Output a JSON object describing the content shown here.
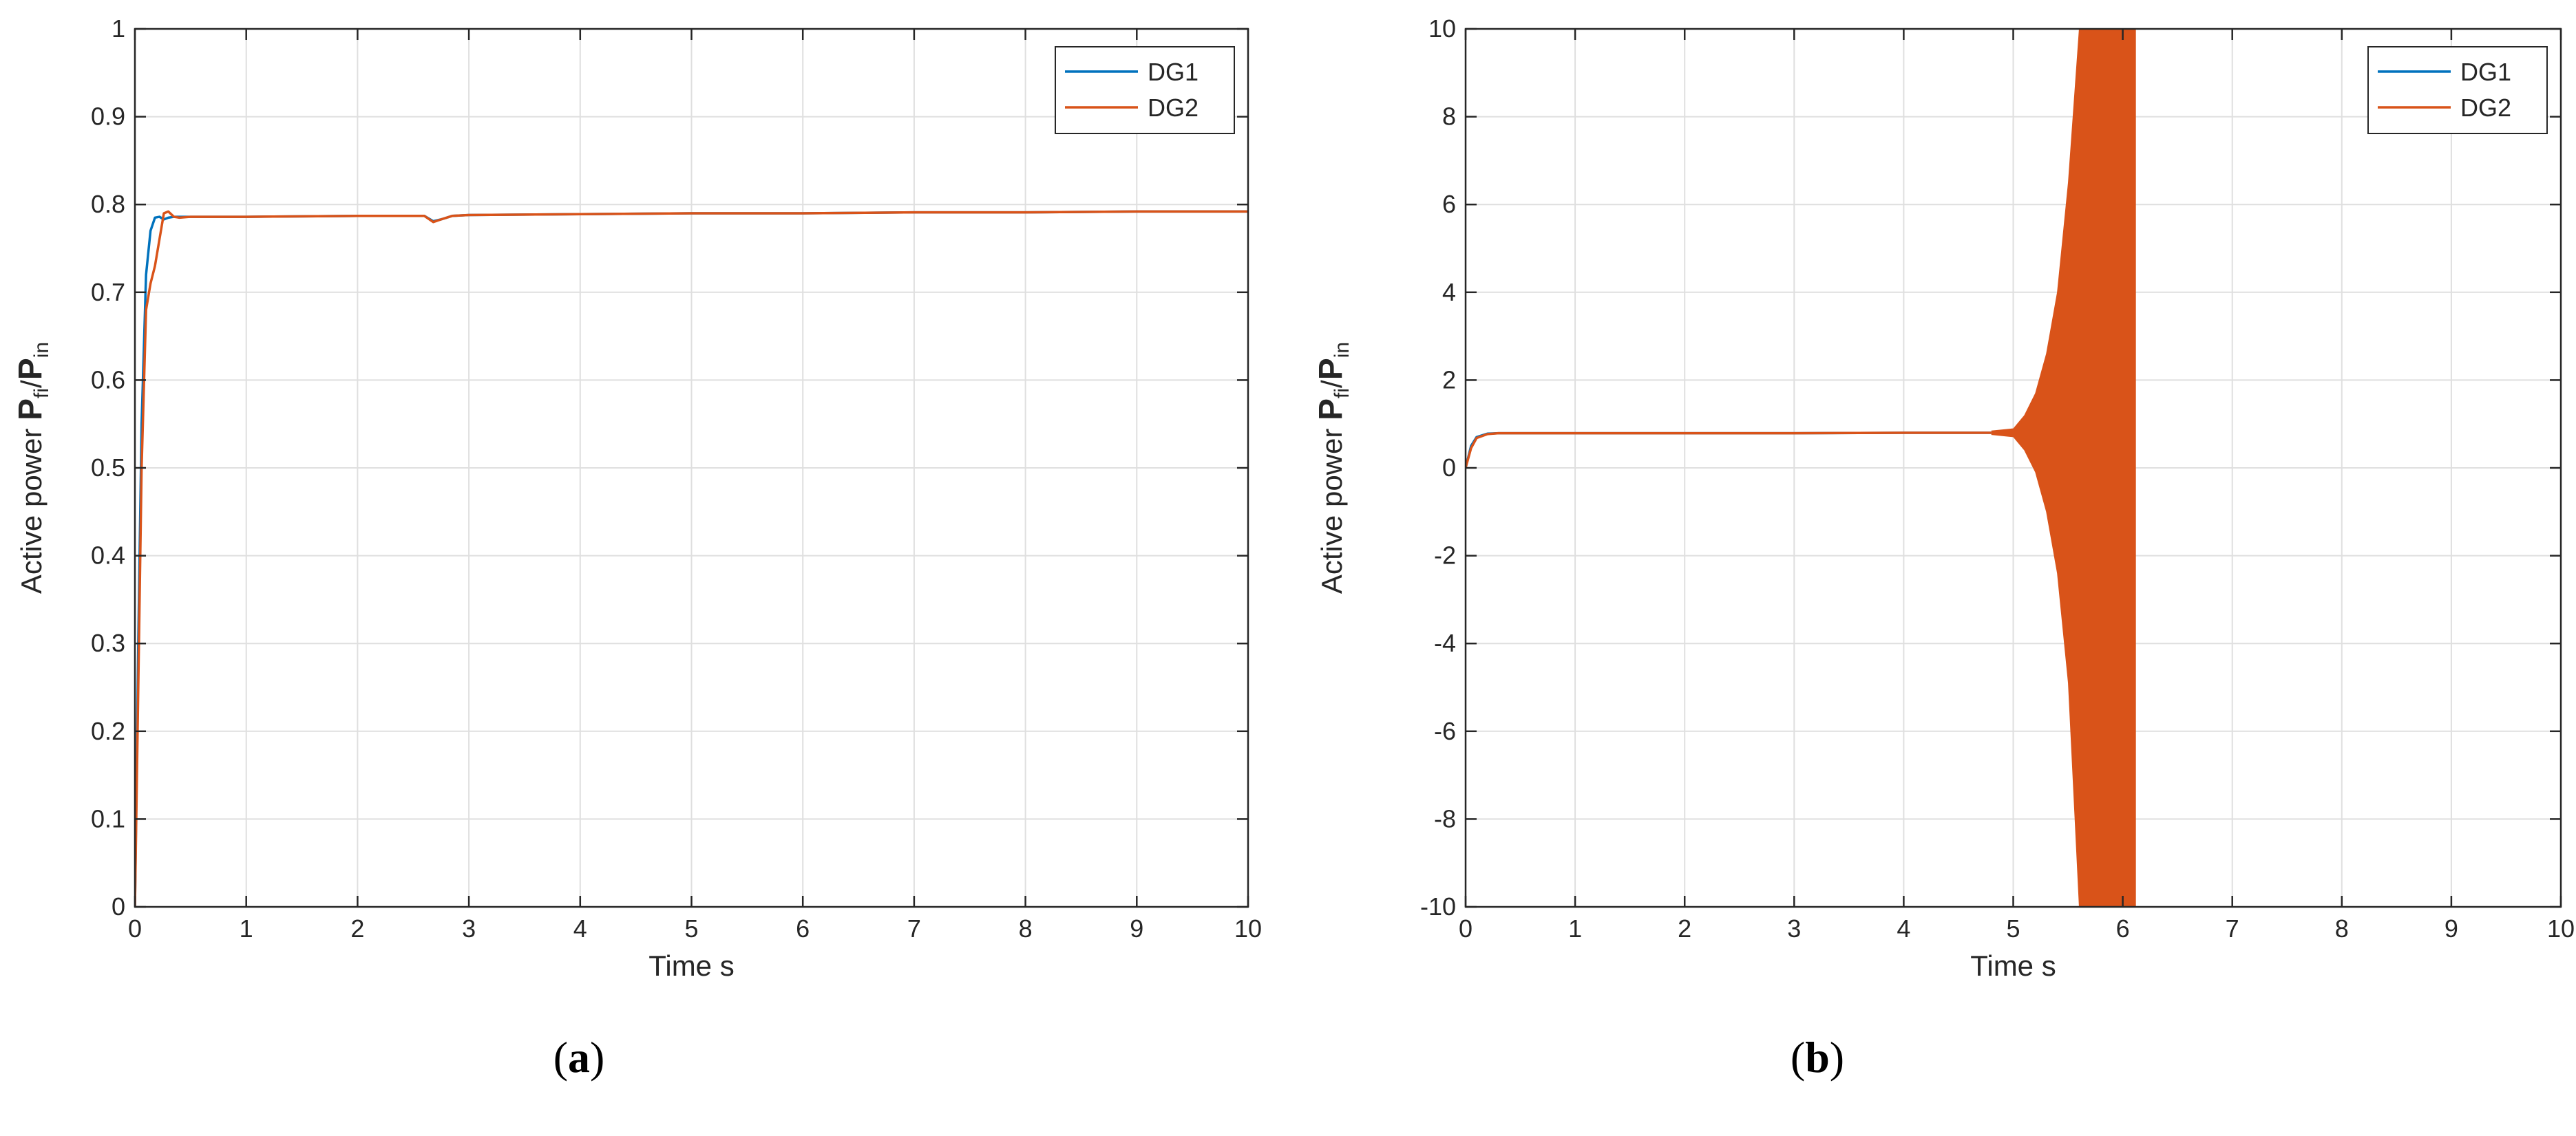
{
  "panels": [
    {
      "caption_open": "(",
      "caption_letter": "a",
      "caption_close": ")",
      "chart_data": {
        "type": "line",
        "title": "",
        "xlabel": "Time s",
        "ylabel_prefix": "Active power ",
        "ylabel_bold_p1": "P",
        "ylabel_sub1": "fi",
        "ylabel_slash": "/",
        "ylabel_bold_p2": "P",
        "ylabel_sub2": "in",
        "xlim": [
          0,
          10
        ],
        "ylim": [
          0,
          1
        ],
        "xticks": [
          "0",
          "1",
          "2",
          "3",
          "4",
          "5",
          "6",
          "7",
          "8",
          "9",
          "10"
        ],
        "yticks": [
          "0",
          "0.1",
          "0.2",
          "0.3",
          "0.4",
          "0.5",
          "0.6",
          "0.7",
          "0.8",
          "0.9",
          "1"
        ],
        "grid": true,
        "legend_position": "top-right",
        "series": [
          {
            "name": "DG1",
            "color": "#0072BD",
            "x": [
              0,
              0.03,
              0.06,
              0.1,
              0.14,
              0.18,
              0.22,
              0.26,
              0.3,
              0.35,
              0.4,
              0.5,
              1,
              2,
              2.6,
              2.68,
              2.75,
              2.85,
              3,
              4,
              5,
              6,
              7,
              8,
              9,
              10
            ],
            "y": [
              0,
              0.3,
              0.55,
              0.72,
              0.77,
              0.785,
              0.786,
              0.783,
              0.785,
              0.786,
              0.786,
              0.786,
              0.786,
              0.787,
              0.787,
              0.781,
              0.783,
              0.787,
              0.788,
              0.789,
              0.79,
              0.79,
              0.791,
              0.791,
              0.792,
              0.792
            ]
          },
          {
            "name": "DG2",
            "color": "#D95319",
            "x": [
              0,
              0.03,
              0.06,
              0.1,
              0.14,
              0.18,
              0.22,
              0.26,
              0.3,
              0.35,
              0.4,
              0.5,
              1,
              2,
              2.6,
              2.68,
              2.75,
              2.85,
              3,
              4,
              5,
              6,
              7,
              8,
              9,
              10
            ],
            "y": [
              0,
              0.25,
              0.5,
              0.68,
              0.71,
              0.73,
              0.76,
              0.79,
              0.792,
              0.786,
              0.785,
              0.786,
              0.786,
              0.787,
              0.787,
              0.78,
              0.783,
              0.787,
              0.788,
              0.789,
              0.79,
              0.79,
              0.791,
              0.791,
              0.792,
              0.792
            ]
          }
        ]
      }
    },
    {
      "caption_open": "(",
      "caption_letter": "b",
      "caption_close": ")",
      "chart_data": {
        "type": "line",
        "title": "",
        "xlabel": "Time s",
        "ylabel_prefix": "Active power ",
        "ylabel_bold_p1": "P",
        "ylabel_sub1": "fi",
        "ylabel_slash": "/",
        "ylabel_bold_p2": "P",
        "ylabel_sub2": "in",
        "xlim": [
          0,
          10
        ],
        "ylim": [
          -10,
          10
        ],
        "xticks": [
          "0",
          "1",
          "2",
          "3",
          "4",
          "5",
          "6",
          "7",
          "8",
          "9",
          "10"
        ],
        "yticks": [
          "-10",
          "-8",
          "-6",
          "-4",
          "-2",
          "0",
          "2",
          "4",
          "6",
          "8",
          "10"
        ],
        "grid": true,
        "legend_position": "top-right",
        "oscillation_envelope": {
          "series": "DG2",
          "x": [
            4.8,
            5.0,
            5.1,
            5.2,
            5.3,
            5.4,
            5.5,
            5.6,
            5.65,
            5.7,
            6.1,
            6.12
          ],
          "upper": [
            0.85,
            0.9,
            1.2,
            1.7,
            2.6,
            4.0,
            6.5,
            10,
            10,
            10,
            10,
            10
          ],
          "lower": [
            0.75,
            0.7,
            0.4,
            -0.1,
            -1.0,
            -2.4,
            -4.9,
            -10,
            -10,
            -10,
            -10,
            -10
          ]
        },
        "series": [
          {
            "name": "DG1",
            "color": "#0072BD",
            "x": [
              0,
              0.05,
              0.1,
              0.2,
              0.3,
              0.5,
              1,
              2,
              3,
              4,
              4.8
            ],
            "y": [
              0,
              0.5,
              0.7,
              0.78,
              0.79,
              0.79,
              0.79,
              0.79,
              0.79,
              0.8,
              0.8
            ]
          },
          {
            "name": "DG2",
            "color": "#D95319",
            "x": [
              0,
              0.05,
              0.1,
              0.2,
              0.3,
              0.5,
              1,
              2,
              3,
              4,
              4.8
            ],
            "y": [
              0,
              0.45,
              0.68,
              0.77,
              0.79,
              0.79,
              0.79,
              0.79,
              0.79,
              0.8,
              0.8
            ]
          }
        ]
      }
    }
  ]
}
